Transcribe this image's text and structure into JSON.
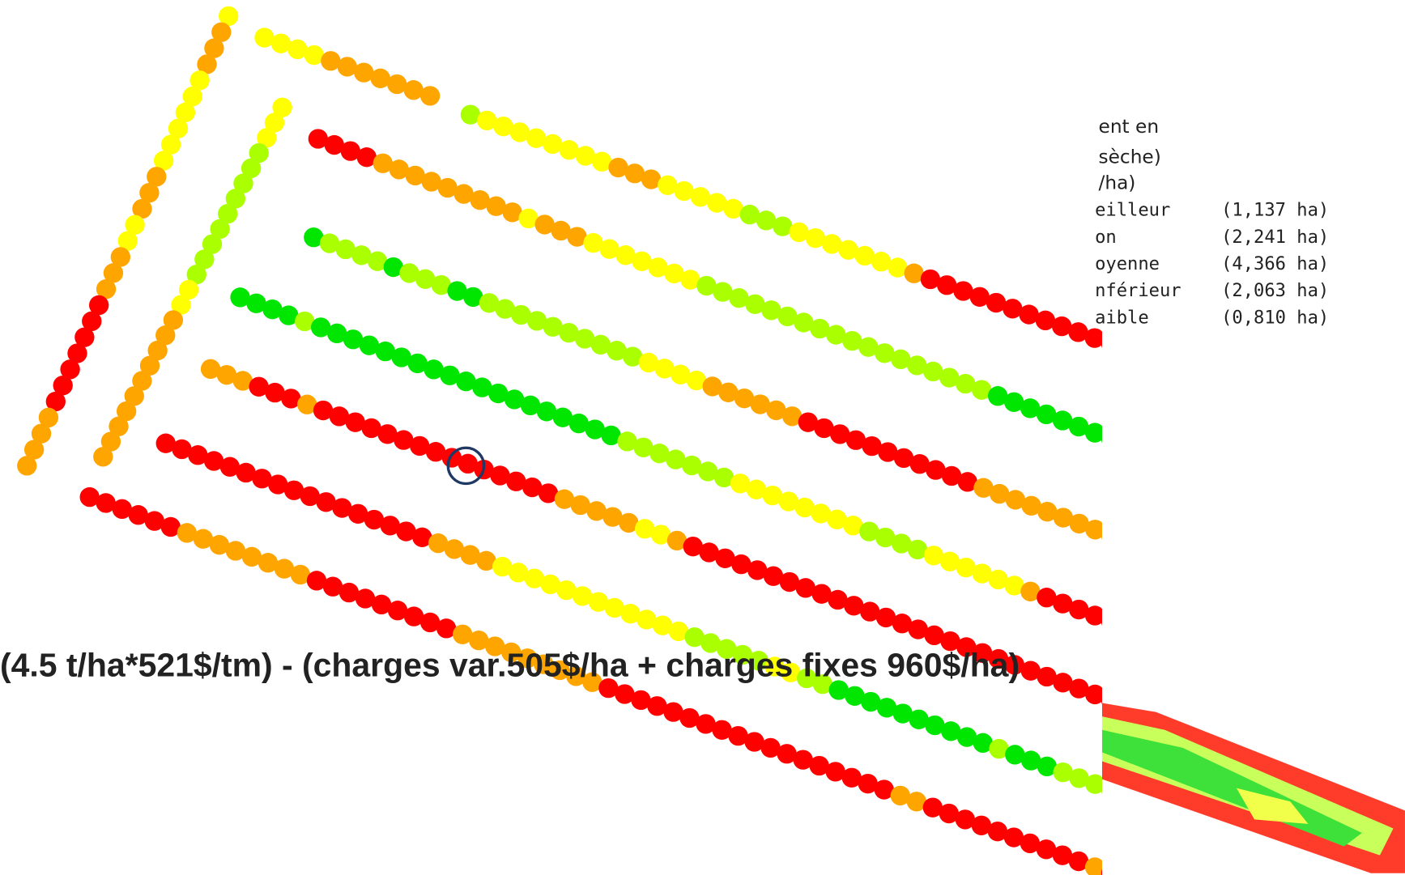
{
  "legend": {
    "title_lines": [
      "ent en",
      "sèche)",
      "/ha)"
    ],
    "rows": [
      {
        "label": "eilleur",
        "area": "(1,137 ha)"
      },
      {
        "label": "on",
        "area": "(2,241 ha)"
      },
      {
        "label": "oyenne",
        "area": "(4,366 ha)"
      },
      {
        "label": "nférieur",
        "area": "(2,063 ha)"
      },
      {
        "label": "aible",
        "area": "(0,810 ha)"
      }
    ]
  },
  "caption": "(4.5 t/ha*521$/tm) - (charges var.505$/ha + charges fixes 960$/ha)"
}
